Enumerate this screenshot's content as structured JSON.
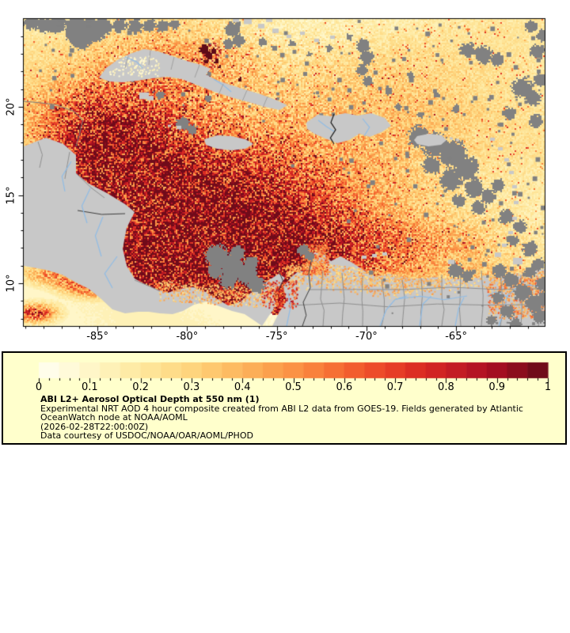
{
  "map": {
    "x_axis": {
      "tick_labels": [
        "-85°",
        "-80°",
        "-75°",
        "-70°",
        "-65°"
      ],
      "tick_lons": [
        -85,
        -80,
        -75,
        -70,
        -65
      ],
      "minor_step_deg": 1
    },
    "y_axis": {
      "tick_labels": [
        "20°",
        "15°",
        "10°"
      ],
      "tick_lats": [
        20,
        15,
        10
      ],
      "minor_step_deg": 1
    },
    "lon_min": -89.11,
    "lon_max": -60.06,
    "lat_min": 7.58,
    "lat_max": 24.98
  },
  "legend": {
    "title": "ABI L2+ Aerosol Optical Depth at 550 nm (1)",
    "lines": [
      "Experimental NRT AOD 4 hour composite created from ABI L2 data from GOES-19. Fields generated by Atlantic",
      "OceanWatch node at NOAA/AOML",
      "(2026-02-28T22:00:00Z)",
      "Data courtesy of USDOC/NOAA/OAR/AOML/PHOD"
    ],
    "colorbar": {
      "min": 0,
      "max": 1,
      "steps": 25,
      "minor_tick_step": 0.02,
      "tick_labels": [
        "0",
        "0.1",
        "0.2",
        "0.3",
        "0.4",
        "0.5",
        "0.6",
        "0.7",
        "0.8",
        "0.9",
        "1"
      ],
      "tick_values": [
        0,
        0.1,
        0.2,
        0.3,
        0.4,
        0.5,
        0.6,
        0.7,
        0.8,
        0.9,
        1
      ]
    }
  },
  "colors": {
    "page_background": "#ffffff",
    "legend_background": "#ffffcc",
    "frame": "#000000",
    "land_no_data": "#c8c8c8",
    "cloud_no_data": "#818181",
    "admin_border": "#8f8f8f",
    "national_border": "#3d3d3d",
    "coastline": "#7d7d7d",
    "river": "#8fbce6",
    "fire_max_aod": "#5e0b18",
    "colormap_stops": [
      [
        0.0,
        "#fffff2"
      ],
      [
        0.05,
        "#fffbde"
      ],
      [
        0.1,
        "#fff6c8"
      ],
      [
        0.15,
        "#fef0b3"
      ],
      [
        0.2,
        "#fee89e"
      ],
      [
        0.25,
        "#fedf8d"
      ],
      [
        0.3,
        "#fed47d"
      ],
      [
        0.35,
        "#fec56c"
      ],
      [
        0.4,
        "#fdb55c"
      ],
      [
        0.45,
        "#fca450"
      ],
      [
        0.5,
        "#fb9245"
      ],
      [
        0.55,
        "#f97d3a"
      ],
      [
        0.6,
        "#f56631"
      ],
      [
        0.65,
        "#ef512b"
      ],
      [
        0.7,
        "#e63d26"
      ],
      [
        0.75,
        "#da2b23"
      ],
      [
        0.8,
        "#cb2024"
      ],
      [
        0.85,
        "#b91625"
      ],
      [
        0.9,
        "#a30e21"
      ],
      [
        0.95,
        "#860d1d"
      ],
      [
        1.0,
        "#620b19"
      ]
    ]
  }
}
